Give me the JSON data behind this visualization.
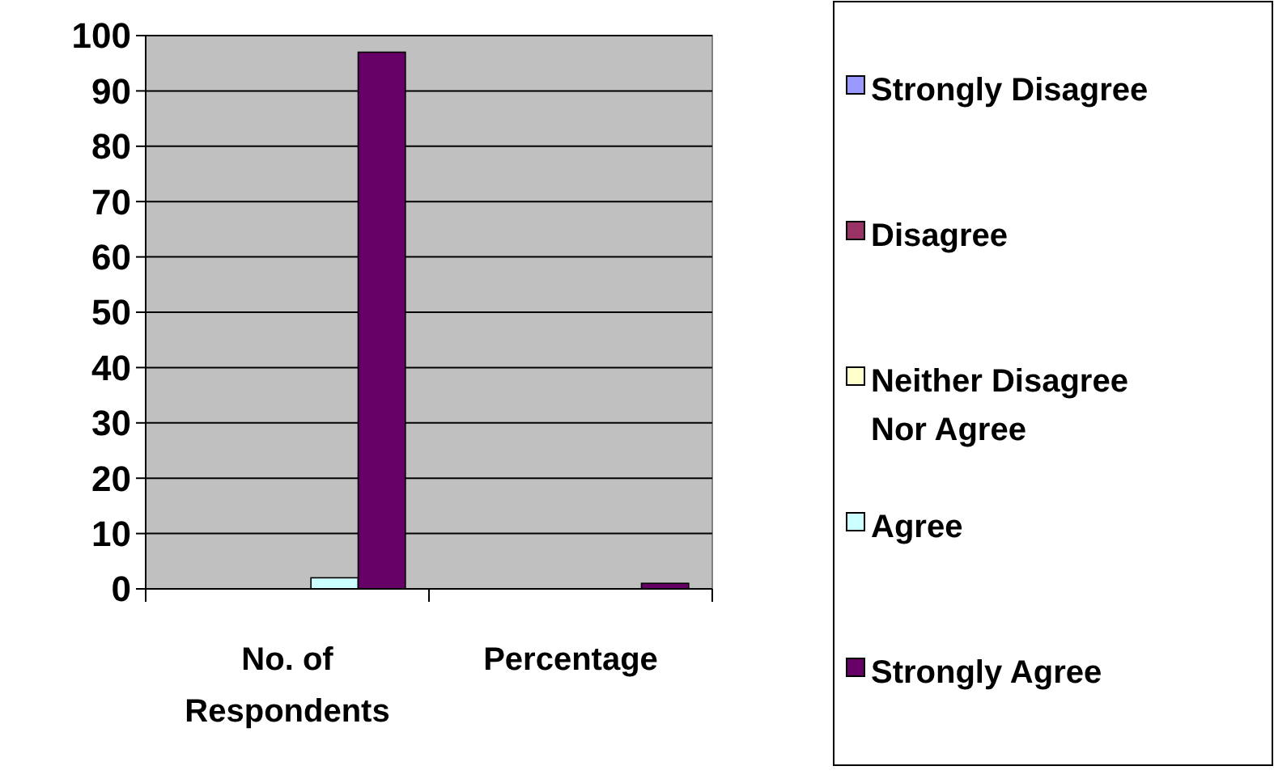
{
  "chart_data": {
    "type": "bar",
    "categories": [
      "No. of Respondents",
      "Percentage"
    ],
    "series": [
      {
        "name": "Strongly Disagree",
        "color": "#9999ff",
        "values": [
          0,
          0
        ]
      },
      {
        "name": "Disagree",
        "color": "#993366",
        "values": [
          0,
          0
        ]
      },
      {
        "name": "Neither Disagree Nor Agree",
        "color": "#ffffcc",
        "values": [
          0,
          0
        ]
      },
      {
        "name": "Agree",
        "color": "#ccffff",
        "values": [
          2,
          0
        ]
      },
      {
        "name": "Strongly Agree",
        "color": "#660066",
        "values": [
          97,
          1
        ]
      }
    ],
    "ylim": [
      0,
      100
    ],
    "yticks": [
      0,
      10,
      20,
      30,
      40,
      50,
      60,
      70,
      80,
      90,
      100
    ],
    "grid": "y",
    "legend": "right"
  }
}
